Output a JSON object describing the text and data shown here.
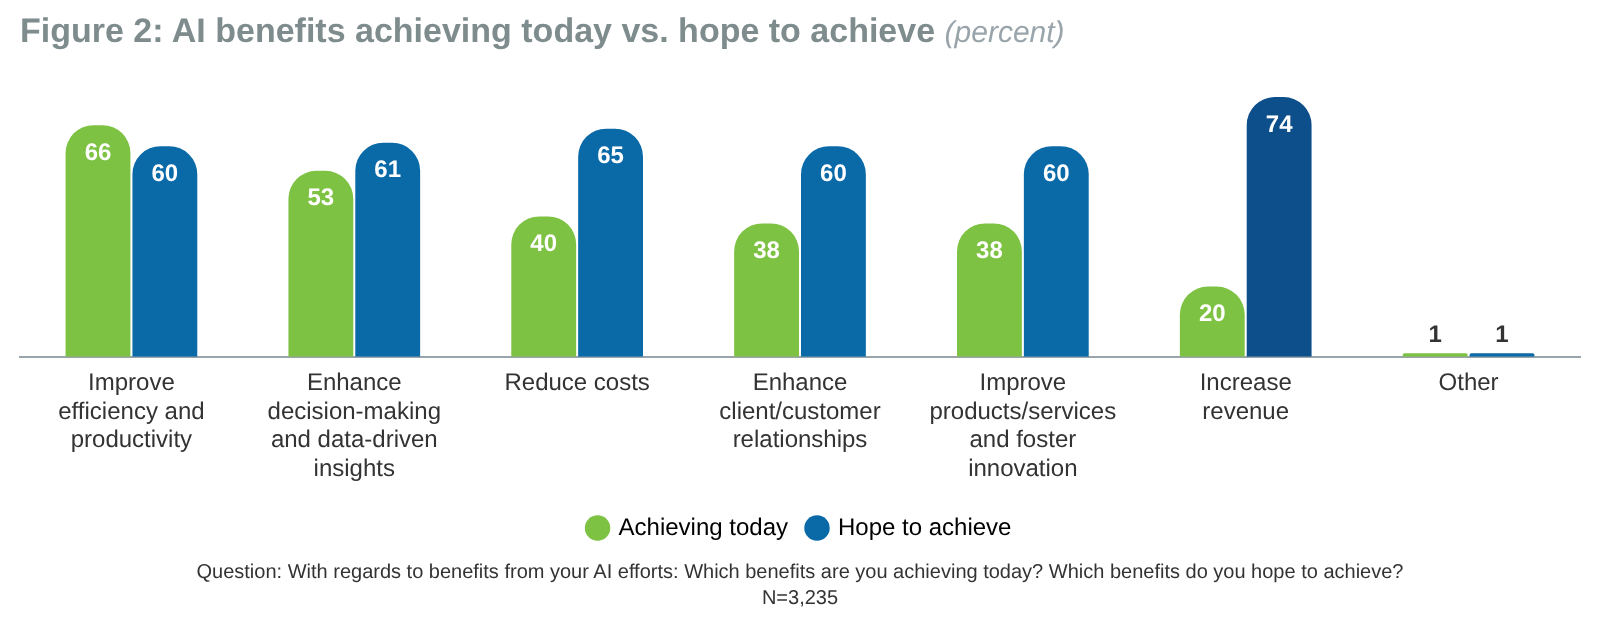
{
  "chart_data": {
    "type": "bar",
    "title": "Figure 2: AI benefits achieving today vs. hope to achieve",
    "subtitle": "(percent)",
    "categories": [
      "Improve efficiency and productivity",
      "Enhance decision-making and data-driven insights",
      "Reduce costs",
      "Enhance client/customer relationships",
      "Improve products/services and foster innovation",
      "Increase revenue",
      "Other"
    ],
    "series": [
      {
        "name": "Achieving today",
        "color": "#7dc242",
        "values": [
          66,
          53,
          40,
          38,
          38,
          20,
          1
        ]
      },
      {
        "name": "Hope to achieve",
        "color": "#0a6aa8",
        "colors": [
          "#0a6aa8",
          "#0a6aa8",
          "#0a6aa8",
          "#0a6aa8",
          "#0a6aa8",
          "#0d4f8a",
          "#0a6aa8"
        ],
        "values": [
          60,
          61,
          65,
          60,
          60,
          74,
          1
        ]
      }
    ],
    "data_labels": true,
    "legend": "bottom",
    "grid": false,
    "annotations": [
      "Question: With regards to benefits from your AI efforts: Which benefits are you achieving today? Which benefits do you hope to achieve?",
      "N=3,235"
    ]
  }
}
